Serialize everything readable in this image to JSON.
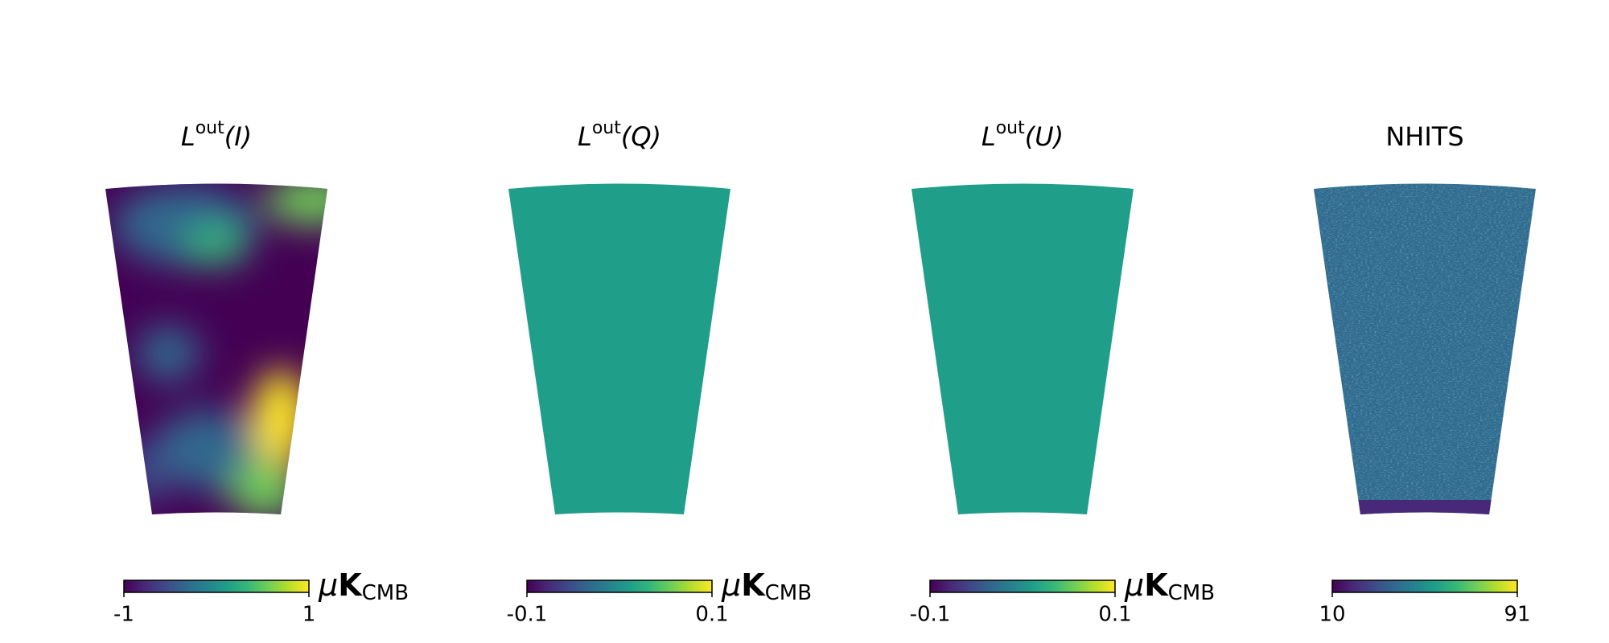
{
  "chart_data": [
    {
      "type": "map",
      "title": {
        "symbol": "L",
        "superscript": "out",
        "argument": "(I)"
      },
      "colormap": "viridis",
      "pattern": "smooth",
      "clim": [
        -1,
        1
      ],
      "cticks": [
        -1,
        1
      ],
      "unit": {
        "prefix": "μ",
        "symbol": "K",
        "subscript": "CMB"
      }
    },
    {
      "type": "map",
      "title": {
        "symbol": "L",
        "superscript": "out",
        "argument": "(Q)"
      },
      "colormap": "viridis",
      "pattern": "uniform",
      "clim": [
        -0.1,
        0.1
      ],
      "cticks": [
        -0.1,
        0.1
      ],
      "unit": {
        "prefix": "μ",
        "symbol": "K",
        "subscript": "CMB"
      }
    },
    {
      "type": "map",
      "title": {
        "symbol": "L",
        "superscript": "out",
        "argument": "(U)"
      },
      "colormap": "viridis",
      "pattern": "uniform",
      "clim": [
        -0.1,
        0.1
      ],
      "cticks": [
        -0.1,
        0.1
      ],
      "unit": {
        "prefix": "μ",
        "symbol": "K",
        "subscript": "CMB"
      }
    },
    {
      "type": "map",
      "title": "NHITS",
      "colormap": "viridis",
      "pattern": "noise",
      "clim": [
        10,
        91
      ],
      "cticks": [
        10,
        91
      ]
    }
  ]
}
